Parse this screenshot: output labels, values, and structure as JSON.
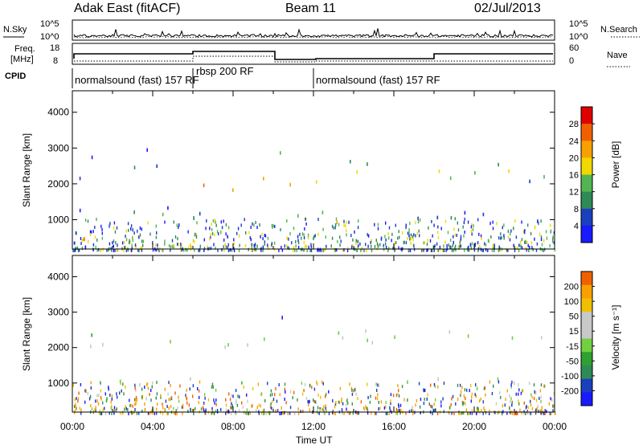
{
  "header": {
    "title": "Adak East (fitACF)",
    "beam": "Beam 11",
    "date": "02/Jul/2013"
  },
  "panels": {
    "nsky_label": "N.Sky",
    "nsearch_label": "N.Search",
    "nsky_ticks": [
      "10^5",
      "10^0"
    ],
    "freq_label_1": "Freq.",
    "freq_label_2": "[MHz]",
    "freq_ticks": [
      "18",
      "8"
    ],
    "nave_label": "Nave",
    "nave_ticks": [
      "60",
      "0"
    ],
    "cpid_label": "CPID"
  },
  "cpid_segments": [
    {
      "label": "normalsound (fast) 157 RF",
      "start_hour": 0,
      "end_hour": 6
    },
    {
      "label": "rbsp 200 RF",
      "start_hour": 6,
      "end_hour": 12
    },
    {
      "label": "normalsound (fast) 157 RF",
      "start_hour": 12,
      "end_hour": 24
    }
  ],
  "colors": {
    "power_scale": [
      "#1a1aff",
      "#1a3fbf",
      "#2e8b57",
      "#52b552",
      "#f0d800",
      "#f8a000",
      "#f06000",
      "#e00000"
    ],
    "velocity_scale": [
      "#e00000",
      "#f06000",
      "#f8a000",
      "#f0c000",
      "#c8c8c8",
      "#c8c8c8",
      "#70d040",
      "#30a030",
      "#2e8b57",
      "#1a3fbf",
      "#1a1aff"
    ]
  },
  "chart_data": [
    {
      "type": "heatmap",
      "title": "",
      "xlabel": "Time UT",
      "ylabel": "Slant Range [km]",
      "xlim": [
        0,
        24
      ],
      "ylim": [
        180,
        4600
      ],
      "x_ticks": [
        "00:00",
        "04:00",
        "08:00",
        "12:00",
        "16:00",
        "20:00",
        "00:00"
      ],
      "y_ticks": [
        "1000",
        "2000",
        "3000",
        "4000"
      ],
      "y_tick_values": [
        1000,
        2000,
        3000,
        4000
      ],
      "colorbar": {
        "label": "Power [dB]",
        "ticks": [
          "4",
          "8",
          "12",
          "16",
          "20",
          "24",
          "28"
        ],
        "tick_values": [
          4,
          8,
          12,
          16,
          20,
          24,
          28
        ],
        "range": [
          0,
          32
        ]
      },
      "regions": [
        {
          "t0": 0.0,
          "t1": 1.4,
          "r0": 300,
          "r1": 700,
          "level": 26
        },
        {
          "t0": 0.0,
          "t1": 6.2,
          "r0": 900,
          "r1": 1450,
          "level": 12
        },
        {
          "t0": 0.0,
          "t1": 6.0,
          "r0": 2150,
          "r1": 2600,
          "level": 16
        },
        {
          "t0": 0.3,
          "t1": 4.8,
          "r0": 2700,
          "r1": 3100,
          "level": 10
        },
        {
          "t0": 6.2,
          "t1": 10.0,
          "r0": 1700,
          "r1": 2500,
          "level": 26
        },
        {
          "t0": 6.0,
          "t1": 10.0,
          "r0": 900,
          "r1": 1400,
          "level": 10
        },
        {
          "t0": 10.0,
          "t1": 12.5,
          "r0": 1600,
          "r1": 2400,
          "level": 24
        },
        {
          "t0": 10.1,
          "t1": 11.0,
          "r0": 2700,
          "r1": 3300,
          "level": 18
        },
        {
          "t0": 10.8,
          "t1": 14.3,
          "r0": 600,
          "r1": 1300,
          "level": 24
        },
        {
          "t0": 12.5,
          "t1": 24.0,
          "r0": 2050,
          "r1": 2800,
          "level": 18
        },
        {
          "t0": 14.5,
          "t1": 24.0,
          "r0": 850,
          "r1": 1400,
          "level": 10
        },
        {
          "t0": 21.0,
          "t1": 24.0,
          "r0": 600,
          "r1": 1000,
          "level": 20
        }
      ]
    },
    {
      "type": "heatmap",
      "title": "",
      "xlabel": "Time UT",
      "ylabel": "Slant Range [km]",
      "xlim": [
        0,
        24
      ],
      "ylim": [
        180,
        4600
      ],
      "x_ticks": [
        "00:00",
        "04:00",
        "08:00",
        "12:00",
        "16:00",
        "20:00",
        "00:00"
      ],
      "y_ticks": [
        "1000",
        "2000",
        "3000",
        "4000"
      ],
      "y_tick_values": [
        1000,
        2000,
        3000,
        4000
      ],
      "colorbar": {
        "label": "Velocity [m s⁻¹]",
        "ticks": [
          "200",
          "100",
          "50",
          "15",
          "-15",
          "-50",
          "-100",
          "-200"
        ],
        "range": [
          -250,
          250
        ]
      },
      "regions": [
        {
          "t0": 0.0,
          "t1": 10.0,
          "r0": 1900,
          "r1": 2600,
          "velocity": 0
        },
        {
          "t0": 12.2,
          "t1": 24.0,
          "r0": 2000,
          "r1": 2800,
          "velocity": 0
        },
        {
          "t0": 0.0,
          "t1": 6.0,
          "r0": 900,
          "r1": 1400,
          "velocity": 0
        },
        {
          "t0": 14.5,
          "t1": 24.0,
          "r0": 800,
          "r1": 1400,
          "velocity": 0
        },
        {
          "t0": 10.1,
          "t1": 10.9,
          "r0": 2600,
          "r1": 3200,
          "velocity": 200
        },
        {
          "t0": 10.8,
          "t1": 14.2,
          "r0": 650,
          "r1": 1200,
          "velocity": 60
        }
      ]
    }
  ]
}
